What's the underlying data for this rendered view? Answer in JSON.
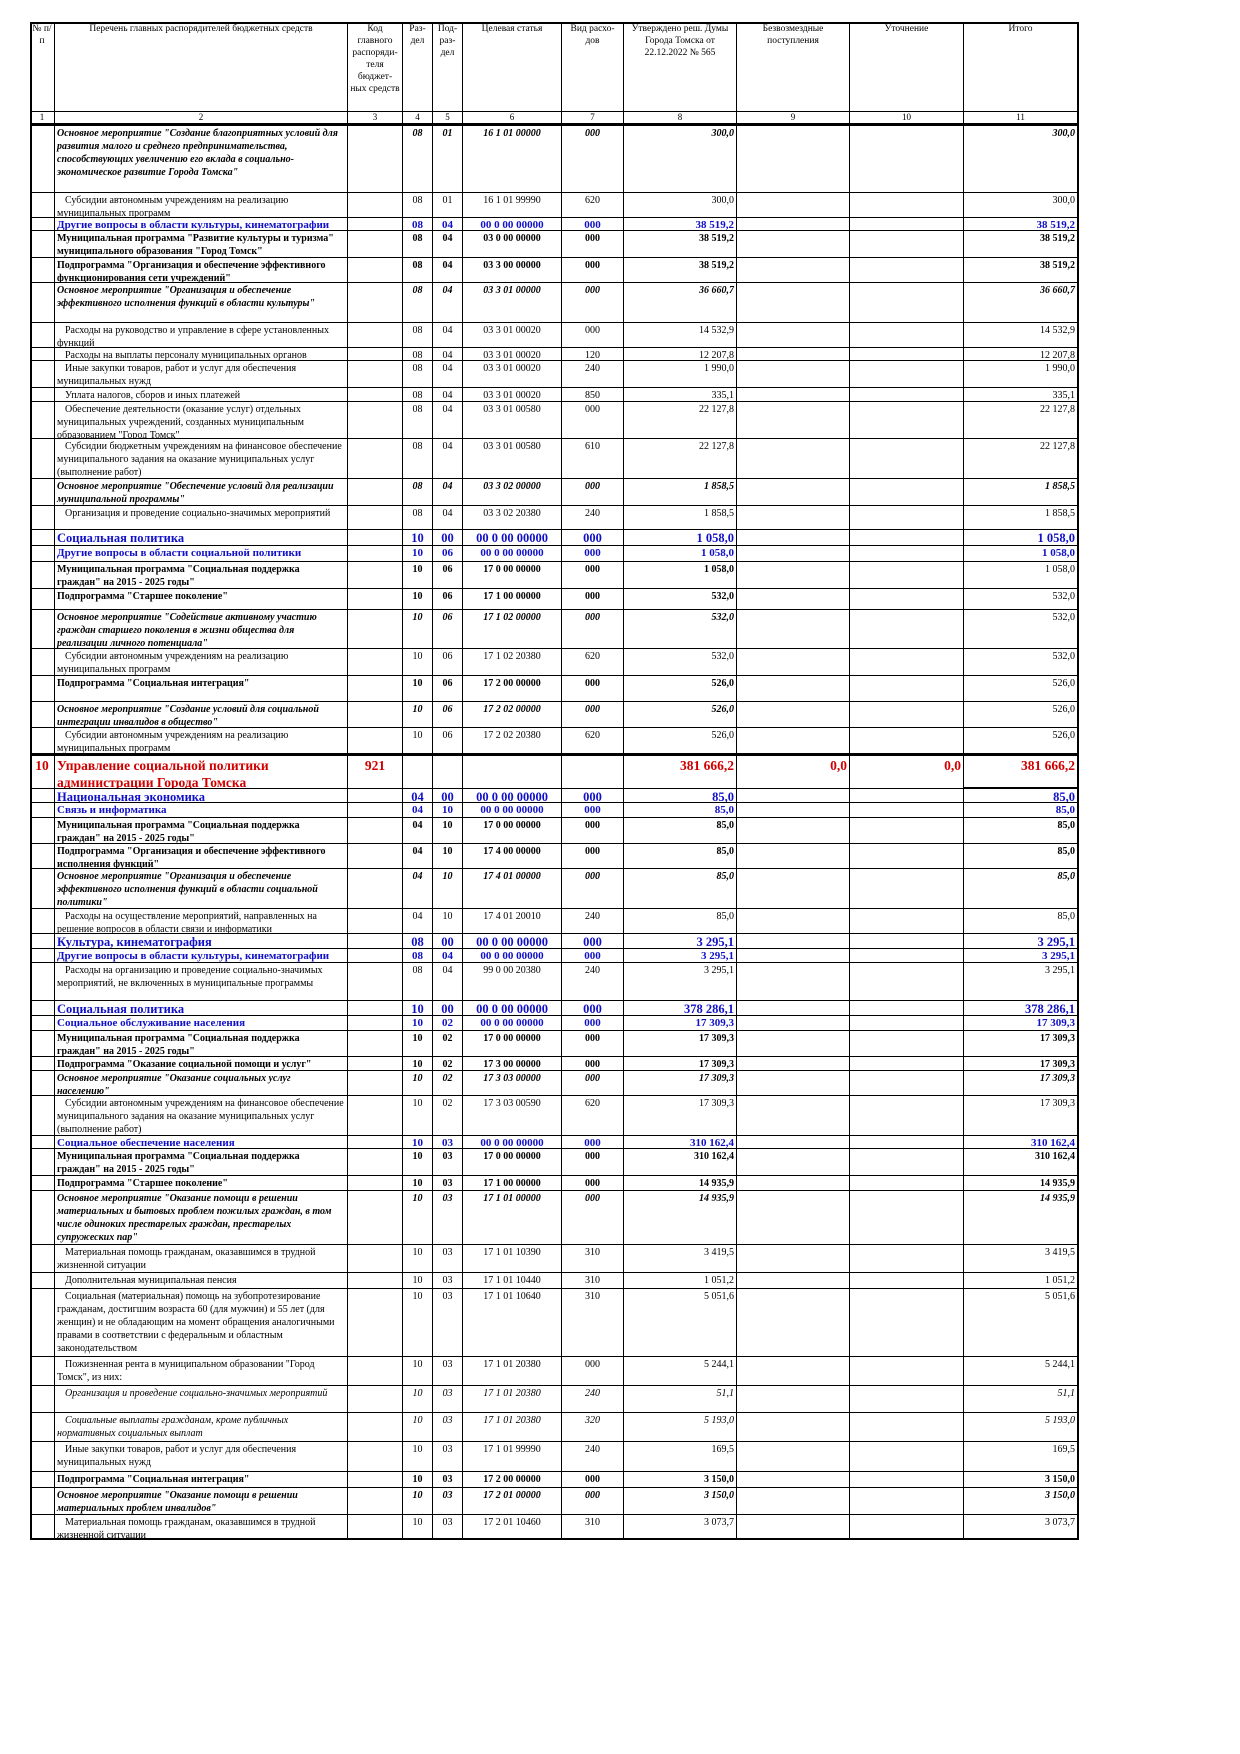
{
  "header": {
    "columns": [
      "№ п/п",
      "Перечень главных распорядителей бюджетных средств",
      "Код главного распоряди-теля бюджет-ных средств",
      "Раз-дел",
      "Под-раз-дел",
      "Целевая статья",
      "Вид расхо-дов",
      "Утверждено реш. Думы Города Томска от 22.12.2022 № 565",
      "Безвозмездные поступления",
      "Уточнение",
      "Итого"
    ],
    "numbers": [
      1,
      2,
      3,
      4,
      5,
      6,
      7,
      8,
      9,
      10,
      11
    ]
  },
  "rows": [
    {
      "name": "Основное мероприятие \"Создание благоприятных условий для развития малого и среднего предпринимательства, способствующих увеличению его вклада в социально-экономическое развитие Города Томска\"",
      "section": "08",
      "subsection": "01",
      "target": "16 1 01 00000",
      "kind": "000",
      "approved": "300,0",
      "total": "300,0"
    },
    {
      "name": "Субсидии автономным учреждениям на реализацию муниципальных программ",
      "section": "08",
      "subsection": "01",
      "target": "16 1 01 99990",
      "kind": "620",
      "approved": "300,0",
      "total": "300,0"
    },
    {
      "name": "Другие вопросы в области культуры, кинематографии",
      "section": "08",
      "subsection": "04",
      "target": "00 0 00 00000",
      "kind": "000",
      "approved": "38 519,2",
      "total": "38 519,2"
    },
    {
      "name": "Муниципальная программа \"Развитие культуры и туризма\" муниципального образования \"Город Томск\"",
      "section": "08",
      "subsection": "04",
      "target": "03 0 00 00000",
      "kind": "000",
      "approved": "38 519,2",
      "total": "38 519,2"
    },
    {
      "name": "Подпрограмма \"Организация и обеспечение эффективного функционирования сети учреждений\"",
      "section": "08",
      "subsection": "04",
      "target": "03 3 00 00000",
      "kind": "000",
      "approved": "38 519,2",
      "total": "38 519,2"
    },
    {
      "name": "Основное мероприятие \"Организация и обеспечение эффективного исполнения функций в области культуры\"",
      "section": "08",
      "subsection": "04",
      "target": "03 3 01 00000",
      "kind": "000",
      "approved": "36 660,7",
      "total": "36 660,7"
    },
    {
      "name": "Расходы на руководство и управление в сфере установленных функций",
      "section": "08",
      "subsection": "04",
      "target": "03 3 01 00020",
      "kind": "000",
      "approved": "14 532,9",
      "total": "14 532,9"
    },
    {
      "name": "Расходы на выплаты персоналу муниципальных органов",
      "section": "08",
      "subsection": "04",
      "target": "03 3 01 00020",
      "kind": "120",
      "approved": "12 207,8",
      "total": "12 207,8"
    },
    {
      "name": "Иные закупки товаров, работ и услуг для обеспечения муниципальных нужд",
      "section": "08",
      "subsection": "04",
      "target": "03 3 01 00020",
      "kind": "240",
      "approved": "1 990,0",
      "total": "1 990,0"
    },
    {
      "name": "Уплата налогов, сборов и иных платежей",
      "section": "08",
      "subsection": "04",
      "target": "03 3 01 00020",
      "kind": "850",
      "approved": "335,1",
      "total": "335,1"
    },
    {
      "name": "Обеспечение деятельности (оказание услуг) отдельных муниципальных учреждений, созданных муниципальным образованием \"Город Томск\"",
      "section": "08",
      "subsection": "04",
      "target": "03 3 01 00580",
      "kind": "000",
      "approved": "22 127,8",
      "total": "22 127,8"
    },
    {
      "name": "Субсидии бюджетным учреждениям на финансовое обеспечение муниципального задания на оказание муниципальных услуг (выполнение работ)",
      "section": "08",
      "subsection": "04",
      "target": "03 3 01 00580",
      "kind": "610",
      "approved": "22 127,8",
      "total": "22 127,8"
    },
    {
      "name": "Основное мероприятие \"Обеспечение условий для реализации муниципальной программы\"",
      "section": "08",
      "subsection": "04",
      "target": "03 3 02 00000",
      "kind": "000",
      "approved": "1 858,5",
      "total": "1 858,5"
    },
    {
      "name": "Организация и проведение социально-значимых мероприятий",
      "section": "08",
      "subsection": "04",
      "target": "03 3 02 20380",
      "kind": "240",
      "approved": "1 858,5",
      "total": "1 858,5"
    },
    {
      "name": "Социальная политика",
      "section": "10",
      "subsection": "00",
      "target": "00 0 00 00000",
      "kind": "000",
      "approved": "1 058,0",
      "total": "1 058,0"
    },
    {
      "name": "Другие вопросы в области социальной политики",
      "section": "10",
      "subsection": "06",
      "target": "00 0 00 00000",
      "kind": "000",
      "approved": "1 058,0",
      "total": "1 058,0"
    },
    {
      "name": "Муниципальная программа \"Социальная поддержка граждан\" на 2015 - 2025 годы\"",
      "section": "10",
      "subsection": "06",
      "target": "17 0 00 00000",
      "kind": "000",
      "approved": "1 058,0",
      "total": "1 058,0"
    },
    {
      "name": "Подпрограмма \"Старшее поколение\"",
      "section": "10",
      "subsection": "06",
      "target": "17 1 00 00000",
      "kind": "000",
      "approved": "532,0",
      "total": "532,0"
    },
    {
      "name": "Основное мероприятие \"Содействие активному участию граждан старшего поколения в жизни общества для реализации личного потенциала\"",
      "section": "10",
      "subsection": "06",
      "target": "17 1 02 00000",
      "kind": "000",
      "approved": "532,0",
      "total": "532,0"
    },
    {
      "name": "Субсидии автономным учреждениям на реализацию муниципальных программ",
      "section": "10",
      "subsection": "06",
      "target": "17 1 02 20380",
      "kind": "620",
      "approved": "532,0",
      "total": "532,0"
    },
    {
      "name": "Подпрограмма \"Социальная интеграция\"",
      "section": "10",
      "subsection": "06",
      "target": "17 2 00 00000",
      "kind": "000",
      "approved": "526,0",
      "total": "526,0"
    },
    {
      "name": "Основное мероприятие \"Создание условий для социальной интеграции инвалидов в общество\"",
      "section": "10",
      "subsection": "06",
      "target": "17 2 02 00000",
      "kind": "000",
      "approved": "526,0",
      "total": "526,0"
    },
    {
      "name": "Субсидии автономным учреждениям на реализацию муниципальных программ",
      "section": "10",
      "subsection": "06",
      "target": "17 2 02 20380",
      "kind": "620",
      "approved": "526,0",
      "total": "526,0"
    },
    {
      "num": "10",
      "name": "Управление социальной политики администрации Города Томска",
      "code": "921",
      "approved": "381 666,2",
      "free": "0,0",
      "adjust": "0,0",
      "total": "381 666,2"
    },
    {
      "name": "Национальная экономика",
      "section": "04",
      "subsection": "00",
      "target": "00 0 00 00000",
      "kind": "000",
      "approved": "85,0",
      "total": "85,0"
    },
    {
      "name": "Связь и информатика",
      "section": "04",
      "subsection": "10",
      "target": "00 0 00 00000",
      "kind": "000",
      "approved": "85,0",
      "total": "85,0"
    },
    {
      "name": "Муниципальная программа \"Социальная поддержка граждан\" на 2015 - 2025 годы\"",
      "section": "04",
      "subsection": "10",
      "target": "17 0 00 00000",
      "kind": "000",
      "approved": "85,0",
      "total": "85,0"
    },
    {
      "name": "Подпрограмма \"Организация и обеспечение эффективного исполнения функций\"",
      "section": "04",
      "subsection": "10",
      "target": "17 4 00 00000",
      "kind": "000",
      "approved": "85,0",
      "total": "85,0"
    },
    {
      "name": "Основное мероприятие \"Организация и обеспечение эффективного исполнения функций в области социальной политики\"",
      "section": "04",
      "subsection": "10",
      "target": "17 4 01 00000",
      "kind": "000",
      "approved": "85,0",
      "total": "85,0"
    },
    {
      "name": "Расходы на осуществление мероприятий, направленных на решение вопросов в области связи и информатики",
      "section": "04",
      "subsection": "10",
      "target": "17 4 01 20010",
      "kind": "240",
      "approved": "85,0",
      "total": "85,0"
    },
    {
      "name": "Культура, кинематография",
      "section": "08",
      "subsection": "00",
      "target": "00 0 00 00000",
      "kind": "000",
      "approved": "3 295,1",
      "total": "3 295,1"
    },
    {
      "name": "Другие вопросы в области культуры, кинематографии",
      "section": "08",
      "subsection": "04",
      "target": "00 0 00 00000",
      "kind": "000",
      "approved": "3 295,1",
      "total": "3 295,1"
    },
    {
      "name": "Расходы на организацию и проведение социально-значимых мероприятий, не включенных в муниципальные программы",
      "section": "08",
      "subsection": "04",
      "target": "99 0 00 20380",
      "kind": "240",
      "approved": "3 295,1",
      "total": "3 295,1"
    },
    {
      "name": "Социальная политика",
      "section": "10",
      "subsection": "00",
      "target": "00 0 00 00000",
      "kind": "000",
      "approved": "378 286,1",
      "total": "378 286,1"
    },
    {
      "name": "Социальное обслуживание населения",
      "section": "10",
      "subsection": "02",
      "target": "00 0 00 00000",
      "kind": "000",
      "approved": "17 309,3",
      "total": "17 309,3"
    },
    {
      "name": "Муниципальная программа \"Социальная поддержка граждан\" на 2015 - 2025 годы\"",
      "section": "10",
      "subsection": "02",
      "target": "17 0 00 00000",
      "kind": "000",
      "approved": "17 309,3",
      "total": "17 309,3"
    },
    {
      "name": "Подпрограмма \"Оказание социальной помощи и услуг\"",
      "section": "10",
      "subsection": "02",
      "target": "17 3 00 00000",
      "kind": "000",
      "approved": "17 309,3",
      "total": "17 309,3"
    },
    {
      "name": "Основное мероприятие \"Оказание социальных услуг населению\"",
      "section": "10",
      "subsection": "02",
      "target": "17 3 03 00000",
      "kind": "000",
      "approved": "17 309,3",
      "total": "17 309,3"
    },
    {
      "name": "Субсидии автономным учреждениям на финансовое обеспечение муниципального задания на оказание муниципальных услуг (выполнение работ)",
      "section": "10",
      "subsection": "02",
      "target": "17 3 03 00590",
      "kind": "620",
      "approved": "17 309,3",
      "total": "17 309,3"
    },
    {
      "name": "Социальное обеспечение населения",
      "section": "10",
      "subsection": "03",
      "target": "00 0 00 00000",
      "kind": "000",
      "approved": "310 162,4",
      "total": "310 162,4"
    },
    {
      "name": "Муниципальная программа \"Социальная поддержка граждан\" на 2015 - 2025 годы\"",
      "section": "10",
      "subsection": "03",
      "target": "17 0 00 00000",
      "kind": "000",
      "approved": "310 162,4",
      "total": "310 162,4"
    },
    {
      "name": "Подпрограмма \"Старшее поколение\"",
      "section": "10",
      "subsection": "03",
      "target": "17 1 00 00000",
      "kind": "000",
      "approved": "14 935,9",
      "total": "14 935,9"
    },
    {
      "name": "Основное мероприятие \"Оказание помощи в решении материальных и бытовых проблем пожилых граждан, в том числе одиноких престарелых граждан, престарелых супружеских пар\"",
      "section": "10",
      "subsection": "03",
      "target": "17 1 01 00000",
      "kind": "000",
      "approved": "14 935,9",
      "total": "14 935,9"
    },
    {
      "name": "Материальная помощь гражданам, оказавшимся в трудной жизненной ситуации",
      "section": "10",
      "subsection": "03",
      "target": "17 1 01 10390",
      "kind": "310",
      "approved": "3 419,5",
      "total": "3 419,5"
    },
    {
      "name": "Дополнительная муниципальная пенсия",
      "section": "10",
      "subsection": "03",
      "target": "17 1 01 10440",
      "kind": "310",
      "approved": "1 051,2",
      "total": "1 051,2"
    },
    {
      "name": "Социальная (материальная) помощь на зубопротезирование гражданам, достигшим возраста 60 (для мужчин) и 55 лет (для женщин) и не обладающим на момент обращения аналогичными правами в соответствии с федеральным и областным законодательством",
      "section": "10",
      "subsection": "03",
      "target": "17 1 01 10640",
      "kind": "310",
      "approved": "5 051,6",
      "total": "5 051,6"
    },
    {
      "name": "Пожизненная рента в муниципальном образовании \"Город Томск\", из них:",
      "section": "10",
      "subsection": "03",
      "target": "17 1 01 20380",
      "kind": "000",
      "approved": "5 244,1",
      "total": "5 244,1"
    },
    {
      "name": "Организация и проведение социально-значимых мероприятий",
      "section": "10",
      "subsection": "03",
      "target": "17 1 01 20380",
      "kind": "240",
      "approved": "51,1",
      "total": "51,1"
    },
    {
      "name": "Социальные выплаты гражданам, кроме публичных нормативных социальных выплат",
      "section": "10",
      "subsection": "03",
      "target": "17 1 01 20380",
      "kind": "320",
      "approved": "5 193,0",
      "total": "5 193,0"
    },
    {
      "name": "Иные закупки товаров, работ и услуг для обеспечения муниципальных нужд",
      "section": "10",
      "subsection": "03",
      "target": "17 1 01 99990",
      "kind": "240",
      "approved": "169,5",
      "total": "169,5"
    },
    {
      "name": "Подпрограмма \"Социальная интеграция\"",
      "section": "10",
      "subsection": "03",
      "target": "17 2 00 00000",
      "kind": "000",
      "approved": "3 150,0",
      "total": "3 150,0"
    },
    {
      "name": "Основное мероприятие \"Оказание помощи в решении материальных проблем инвалидов\"",
      "section": "10",
      "subsection": "03",
      "target": "17 2 01 00000",
      "kind": "000",
      "approved": "3 150,0",
      "total": "3 150,0"
    },
    {
      "name": "Материальная помощь гражданам, оказавшимся в трудной жизненной ситуации",
      "section": "10",
      "subsection": "03",
      "target": "17 2 01 10460",
      "kind": "310",
      "approved": "3 073,7",
      "total": "3 073,7"
    }
  ]
}
